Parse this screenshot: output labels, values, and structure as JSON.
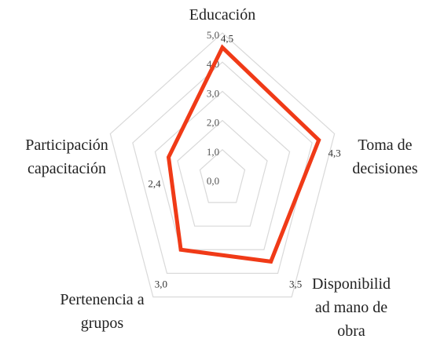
{
  "chart_data": {
    "type": "radar",
    "categories": [
      "Educación",
      "Toma de\ndecisiones",
      "Disponibilid\nad mano de\nobra",
      "Pertenencia a\ngrupos",
      "Participación\ncapacitación"
    ],
    "values": [
      4.5,
      4.3,
      3.5,
      3.0,
      2.4
    ],
    "value_labels": [
      "4,5",
      "4,3",
      "3,5",
      "3,0",
      "2,4"
    ],
    "color": "#f03a17",
    "rlim": [
      0,
      5
    ],
    "rticks": [
      {
        "value": 0,
        "label": "0,0"
      },
      {
        "value": 1,
        "label": "1,0"
      },
      {
        "value": 2,
        "label": "2,0"
      },
      {
        "value": 3,
        "label": "3,0"
      },
      {
        "value": 4,
        "label": "4,0"
      },
      {
        "value": 5,
        "label": "5,0"
      }
    ],
    "grid": true
  }
}
